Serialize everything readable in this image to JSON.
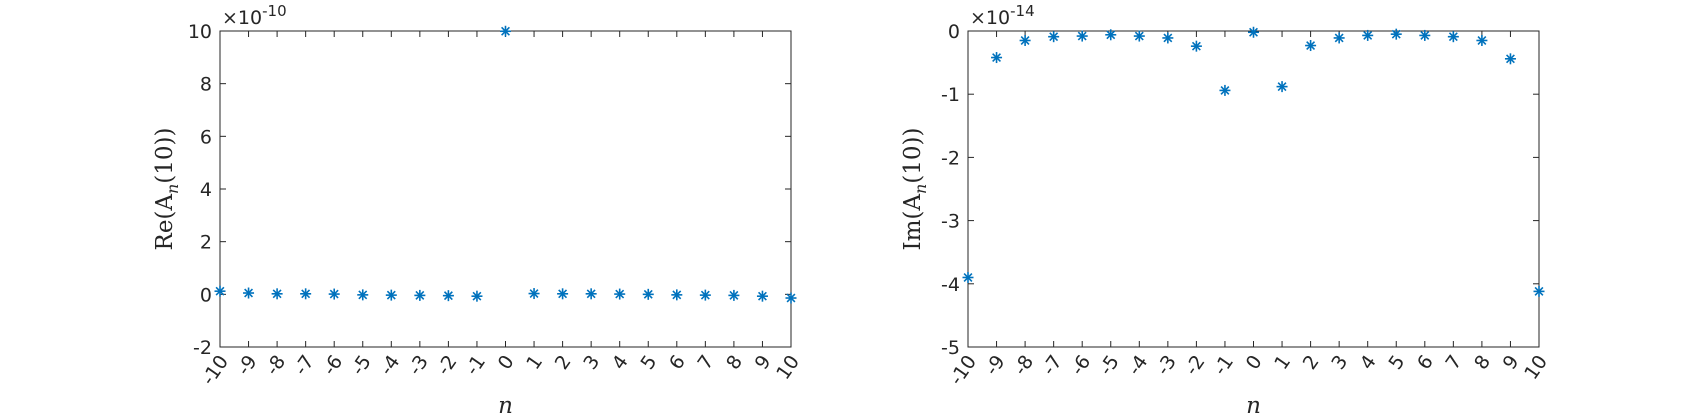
{
  "chart_data": [
    {
      "type": "scatter",
      "marker": "asterisk",
      "color": "#0072BD",
      "xlabel": "n",
      "ylabel": "Re(A_n(10))",
      "ylabel_parts": [
        "Re(A",
        "n",
        "(10))"
      ],
      "y_exponent_base": "×10",
      "y_exponent": "-10",
      "xlim": [
        -10,
        10
      ],
      "ylim": [
        -2,
        10
      ],
      "x_ticks": [
        -10,
        -9,
        -8,
        -7,
        -6,
        -5,
        -4,
        -3,
        -2,
        -1,
        0,
        1,
        2,
        3,
        4,
        5,
        6,
        7,
        8,
        9,
        10
      ],
      "y_ticks": [
        -2,
        0,
        2,
        4,
        6,
        8,
        10
      ],
      "x": [
        -10,
        -9,
        -8,
        -7,
        -6,
        -5,
        -4,
        -3,
        -2,
        -1,
        0,
        1,
        2,
        3,
        4,
        5,
        6,
        7,
        8,
        9,
        10
      ],
      "y": [
        0.12,
        0.05,
        0.02,
        0.02,
        0.01,
        -0.02,
        -0.03,
        -0.04,
        -0.05,
        -0.07,
        9.99,
        0.03,
        0.02,
        0.02,
        0.01,
        0.0,
        -0.02,
        -0.03,
        -0.04,
        -0.07,
        -0.14
      ]
    },
    {
      "type": "scatter",
      "marker": "asterisk",
      "color": "#0072BD",
      "xlabel": "n",
      "ylabel": "Im(A_n(10))",
      "ylabel_parts": [
        "Im(A",
        "n",
        "(10))"
      ],
      "y_exponent_base": "×10",
      "y_exponent": "-14",
      "xlim": [
        -10,
        10
      ],
      "ylim": [
        -5,
        0
      ],
      "x_ticks": [
        -10,
        -9,
        -8,
        -7,
        -6,
        -5,
        -4,
        -3,
        -2,
        -1,
        0,
        1,
        2,
        3,
        4,
        5,
        6,
        7,
        8,
        9,
        10
      ],
      "y_ticks": [
        -5,
        -4,
        -3,
        -2,
        -1,
        0
      ],
      "x": [
        -10,
        -9,
        -8,
        -7,
        -6,
        -5,
        -4,
        -3,
        -2,
        -1,
        0,
        1,
        2,
        3,
        4,
        5,
        6,
        7,
        8,
        9,
        10
      ],
      "y": [
        -3.9,
        -0.42,
        -0.15,
        -0.09,
        -0.08,
        -0.06,
        -0.08,
        -0.11,
        -0.24,
        -0.94,
        -0.02,
        -0.88,
        -0.23,
        -0.11,
        -0.07,
        -0.05,
        -0.07,
        -0.09,
        -0.15,
        -0.44,
        -4.12
      ]
    }
  ]
}
